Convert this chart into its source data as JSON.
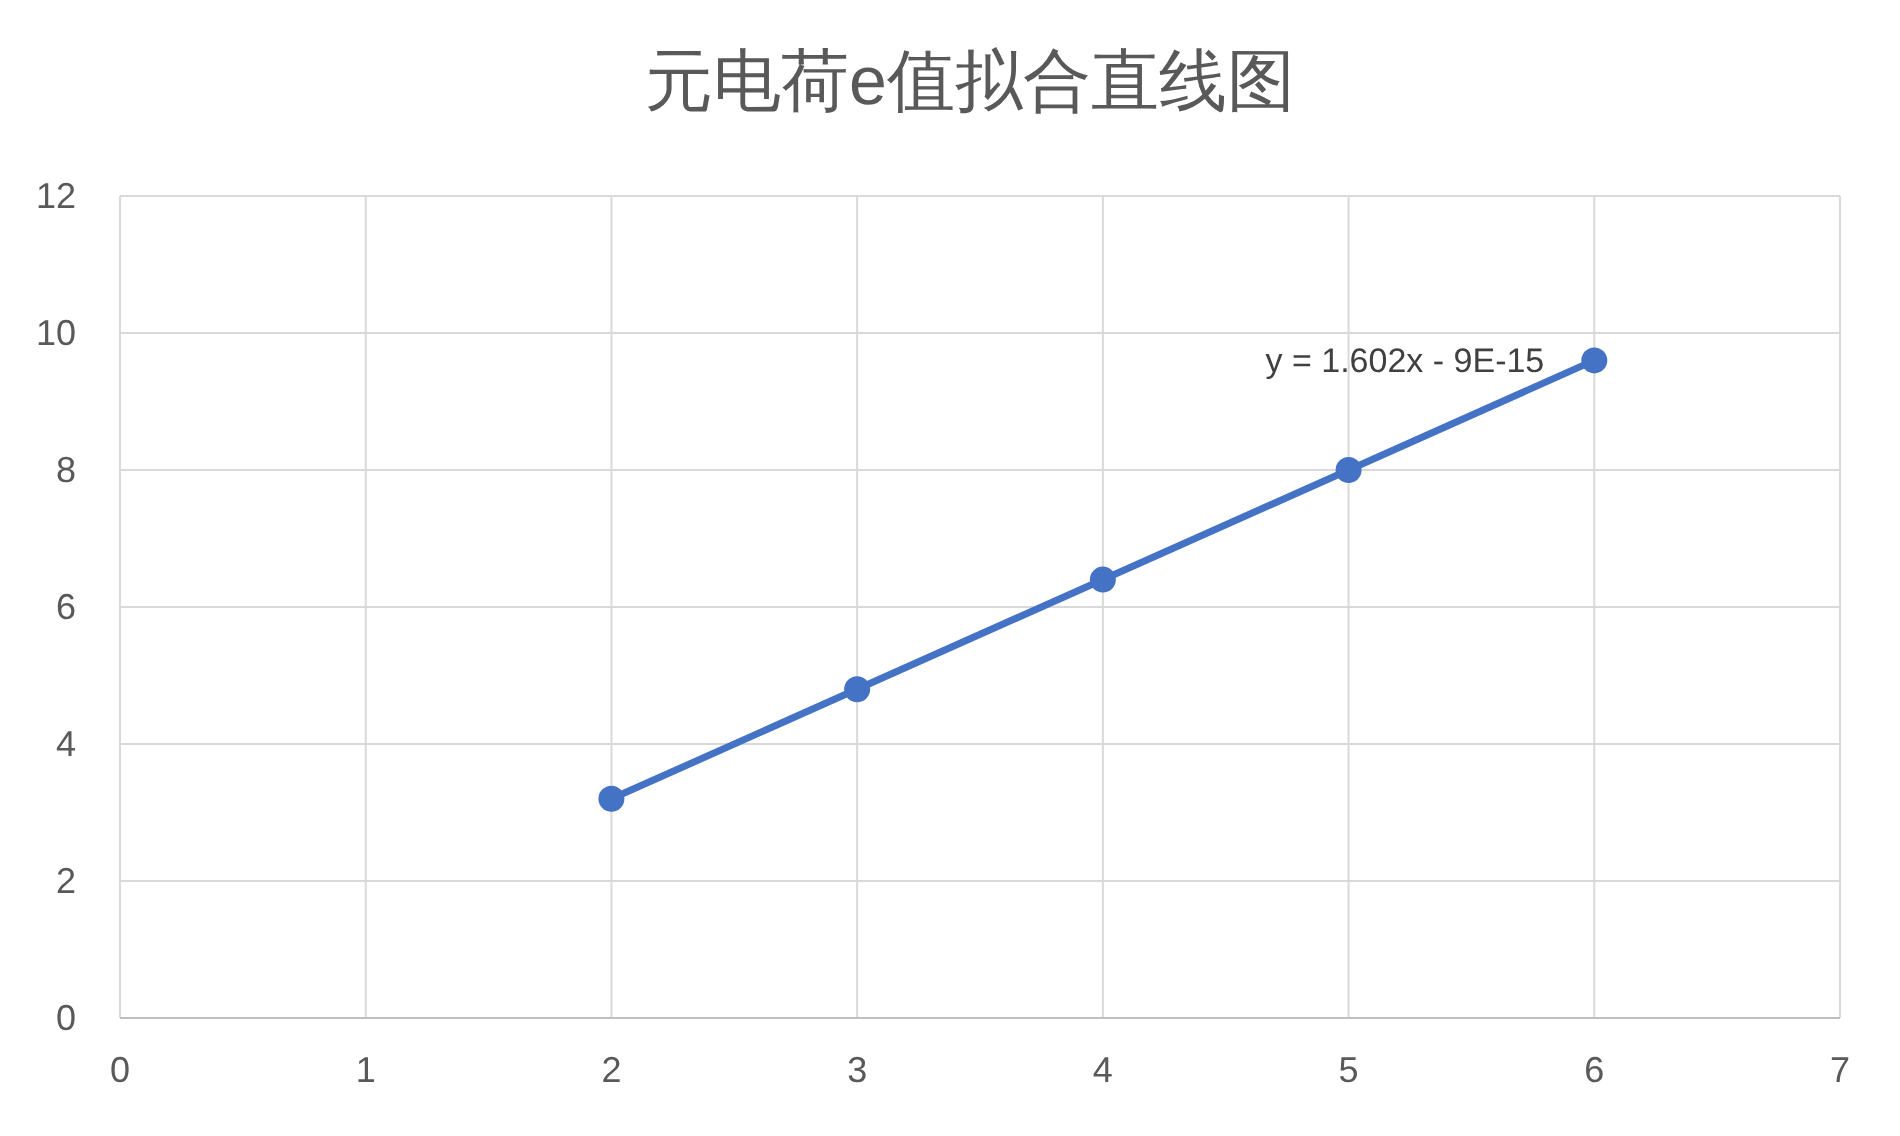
{
  "chart_data": {
    "type": "scatter",
    "title": "元电荷e值拟合直线图",
    "series": [
      {
        "type": "scatter",
        "color": "#4472c4",
        "marker": "circle",
        "x": [
          2,
          3,
          4,
          5,
          6
        ],
        "values": [
          3.2,
          4.8,
          6.4,
          8.0,
          9.6
        ]
      },
      {
        "type": "line",
        "color": "#4472c4",
        "marker": "none",
        "line_style": "solid",
        "x": [
          2,
          6
        ],
        "values": [
          3.2,
          9.6
        ]
      }
    ],
    "xlim": [
      0,
      7
    ],
    "xticks": [
      0,
      1,
      2,
      3,
      4,
      5,
      6,
      7
    ],
    "ylim": [
      0,
      12
    ],
    "yticks": [
      0,
      2,
      4,
      6,
      8,
      10,
      12
    ],
    "grid": true,
    "annotations": [
      "y = 1.602x - 9E-15"
    ]
  }
}
